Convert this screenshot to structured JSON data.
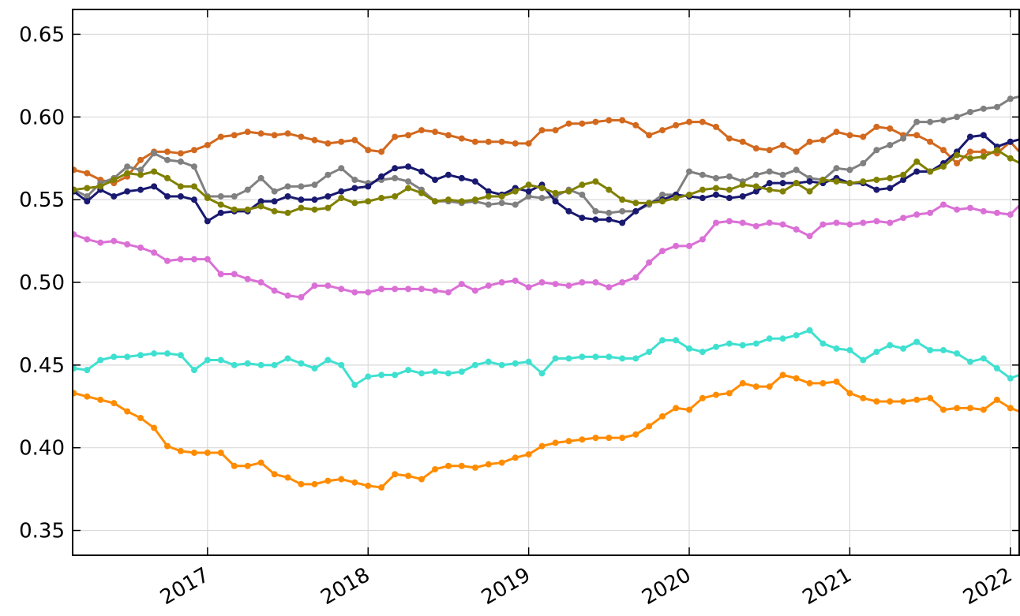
{
  "chart_data": {
    "type": "line",
    "x": [
      2016.167,
      2016.25,
      2016.333,
      2016.417,
      2016.5,
      2016.583,
      2016.667,
      2016.75,
      2016.833,
      2016.917,
      2017.0,
      2017.083,
      2017.167,
      2017.25,
      2017.333,
      2017.417,
      2017.5,
      2017.583,
      2017.667,
      2017.75,
      2017.833,
      2017.917,
      2018.0,
      2018.083,
      2018.167,
      2018.25,
      2018.333,
      2018.417,
      2018.5,
      2018.583,
      2018.667,
      2018.75,
      2018.833,
      2018.917,
      2019.0,
      2019.083,
      2019.167,
      2019.25,
      2019.333,
      2019.417,
      2019.5,
      2019.583,
      2019.667,
      2019.75,
      2019.833,
      2019.917,
      2020.0,
      2020.083,
      2020.167,
      2020.25,
      2020.333,
      2020.417,
      2020.5,
      2020.583,
      2020.667,
      2020.75,
      2020.833,
      2020.917,
      2021.0,
      2021.083,
      2021.167,
      2021.25,
      2021.333,
      2021.417,
      2021.5,
      2021.583,
      2021.667,
      2021.75,
      2021.833,
      2021.917,
      2022.0,
      2022.083
    ],
    "series": [
      {
        "color": "#ff8c00",
        "values": [
          0.433,
          0.431,
          0.429,
          0.427,
          0.422,
          0.418,
          0.412,
          0.401,
          0.398,
          0.397,
          0.397,
          0.397,
          0.389,
          0.389,
          0.391,
          0.384,
          0.382,
          0.378,
          0.378,
          0.38,
          0.381,
          0.379,
          0.377,
          0.376,
          0.384,
          0.383,
          0.381,
          0.387,
          0.389,
          0.389,
          0.388,
          0.39,
          0.391,
          0.394,
          0.396,
          0.401,
          0.403,
          0.404,
          0.405,
          0.406,
          0.406,
          0.406,
          0.408,
          0.413,
          0.419,
          0.424,
          0.423,
          0.43,
          0.432,
          0.433,
          0.439,
          0.437,
          0.437,
          0.444,
          0.442,
          0.439,
          0.439,
          0.44,
          0.433,
          0.43,
          0.428,
          0.428,
          0.428,
          0.429,
          0.43,
          0.423,
          0.424,
          0.424,
          0.423,
          0.429,
          0.424,
          0.421
        ]
      },
      {
        "color": "#40e0d0",
        "values": [
          0.448,
          0.447,
          0.453,
          0.455,
          0.455,
          0.456,
          0.457,
          0.457,
          0.456,
          0.447,
          0.453,
          0.453,
          0.45,
          0.451,
          0.45,
          0.45,
          0.454,
          0.451,
          0.448,
          0.453,
          0.45,
          0.438,
          0.443,
          0.444,
          0.444,
          0.447,
          0.445,
          0.446,
          0.445,
          0.446,
          0.45,
          0.452,
          0.45,
          0.451,
          0.452,
          0.445,
          0.454,
          0.454,
          0.455,
          0.455,
          0.455,
          0.454,
          0.454,
          0.458,
          0.465,
          0.465,
          0.46,
          0.458,
          0.461,
          0.463,
          0.462,
          0.463,
          0.466,
          0.466,
          0.468,
          0.471,
          0.463,
          0.46,
          0.459,
          0.453,
          0.458,
          0.462,
          0.46,
          0.464,
          0.459,
          0.459,
          0.457,
          0.452,
          0.454,
          0.448,
          0.442,
          0.445
        ]
      },
      {
        "color": "#da70d6",
        "values": [
          0.529,
          0.526,
          0.524,
          0.525,
          0.523,
          0.521,
          0.518,
          0.513,
          0.514,
          0.514,
          0.514,
          0.505,
          0.505,
          0.502,
          0.5,
          0.495,
          0.492,
          0.491,
          0.498,
          0.498,
          0.496,
          0.494,
          0.494,
          0.496,
          0.496,
          0.496,
          0.496,
          0.495,
          0.494,
          0.499,
          0.495,
          0.498,
          0.5,
          0.501,
          0.497,
          0.5,
          0.499,
          0.498,
          0.5,
          0.5,
          0.497,
          0.5,
          0.503,
          0.512,
          0.519,
          0.522,
          0.522,
          0.526,
          0.536,
          0.537,
          0.536,
          0.534,
          0.536,
          0.535,
          0.532,
          0.528,
          0.535,
          0.536,
          0.535,
          0.536,
          0.537,
          0.536,
          0.539,
          0.541,
          0.542,
          0.547,
          0.544,
          0.545,
          0.543,
          0.542,
          0.541,
          0.549
        ]
      },
      {
        "color": "#d2691e",
        "values": [
          0.568,
          0.566,
          0.562,
          0.56,
          0.564,
          0.574,
          0.579,
          0.579,
          0.578,
          0.58,
          0.583,
          0.588,
          0.589,
          0.591,
          0.59,
          0.589,
          0.59,
          0.588,
          0.586,
          0.584,
          0.585,
          0.586,
          0.58,
          0.579,
          0.588,
          0.589,
          0.592,
          0.591,
          0.589,
          0.587,
          0.585,
          0.585,
          0.585,
          0.584,
          0.584,
          0.592,
          0.592,
          0.596,
          0.596,
          0.597,
          0.598,
          0.598,
          0.595,
          0.589,
          0.592,
          0.595,
          0.597,
          0.597,
          0.594,
          0.587,
          0.585,
          0.581,
          0.58,
          0.583,
          0.579,
          0.585,
          0.586,
          0.591,
          0.589,
          0.588,
          0.594,
          0.593,
          0.589,
          0.589,
          0.585,
          0.58,
          0.572,
          0.579,
          0.579,
          0.578,
          0.585,
          0.576
        ]
      },
      {
        "color": "#808080",
        "values": [
          0.556,
          0.552,
          0.56,
          0.563,
          0.57,
          0.568,
          0.578,
          0.574,
          0.573,
          0.57,
          0.552,
          0.552,
          0.552,
          0.556,
          0.563,
          0.555,
          0.558,
          0.558,
          0.559,
          0.565,
          0.569,
          0.562,
          0.56,
          0.562,
          0.563,
          0.561,
          0.556,
          0.549,
          0.549,
          0.548,
          0.549,
          0.547,
          0.548,
          0.547,
          0.552,
          0.551,
          0.552,
          0.556,
          0.553,
          0.543,
          0.542,
          0.543,
          0.543,
          0.547,
          0.553,
          0.553,
          0.567,
          0.565,
          0.563,
          0.564,
          0.561,
          0.565,
          0.567,
          0.565,
          0.568,
          0.563,
          0.562,
          0.569,
          0.568,
          0.572,
          0.58,
          0.583,
          0.587,
          0.597,
          0.597,
          0.598,
          0.6,
          0.603,
          0.605,
          0.606,
          0.611,
          0.613
        ]
      },
      {
        "color": "#191970",
        "values": [
          0.555,
          0.549,
          0.556,
          0.552,
          0.555,
          0.556,
          0.558,
          0.552,
          0.552,
          0.55,
          0.537,
          0.542,
          0.543,
          0.543,
          0.549,
          0.549,
          0.552,
          0.55,
          0.55,
          0.552,
          0.555,
          0.557,
          0.558,
          0.564,
          0.569,
          0.57,
          0.567,
          0.562,
          0.565,
          0.563,
          0.561,
          0.555,
          0.553,
          0.557,
          0.555,
          0.559,
          0.549,
          0.543,
          0.539,
          0.538,
          0.538,
          0.536,
          0.543,
          0.548,
          0.55,
          0.553,
          0.552,
          0.551,
          0.553,
          0.551,
          0.552,
          0.555,
          0.56,
          0.56,
          0.56,
          0.561,
          0.56,
          0.563,
          0.56,
          0.56,
          0.556,
          0.557,
          0.562,
          0.567,
          0.567,
          0.572,
          0.579,
          0.588,
          0.589,
          0.582,
          0.585,
          0.587
        ]
      },
      {
        "color": "#808000",
        "values": [
          0.556,
          0.557,
          0.558,
          0.562,
          0.566,
          0.565,
          0.567,
          0.563,
          0.558,
          0.558,
          0.551,
          0.547,
          0.544,
          0.544,
          0.546,
          0.543,
          0.542,
          0.545,
          0.544,
          0.545,
          0.551,
          0.548,
          0.549,
          0.551,
          0.552,
          0.557,
          0.554,
          0.549,
          0.55,
          0.549,
          0.55,
          0.552,
          0.552,
          0.555,
          0.559,
          0.557,
          0.554,
          0.555,
          0.559,
          0.561,
          0.556,
          0.55,
          0.548,
          0.548,
          0.549,
          0.551,
          0.553,
          0.556,
          0.557,
          0.556,
          0.559,
          0.558,
          0.556,
          0.555,
          0.56,
          0.555,
          0.562,
          0.561,
          0.56,
          0.561,
          0.562,
          0.563,
          0.565,
          0.573,
          0.567,
          0.57,
          0.577,
          0.575,
          0.576,
          0.58,
          0.575,
          0.571
        ]
      }
    ],
    "xlim": [
      2016.16,
      2022.06
    ],
    "xticks": [
      2017,
      2018,
      2019,
      2020,
      2021,
      2022
    ],
    "ylim": [
      0.335,
      0.665
    ],
    "yticks": [
      0.35,
      {
        "value": 0.4,
        "label": "0.40"
      },
      0.45,
      {
        "value": 0.5,
        "label": "0.50"
      },
      0.55,
      {
        "value": 0.6,
        "label": "0.60"
      },
      0.65
    ],
    "grid": true
  }
}
